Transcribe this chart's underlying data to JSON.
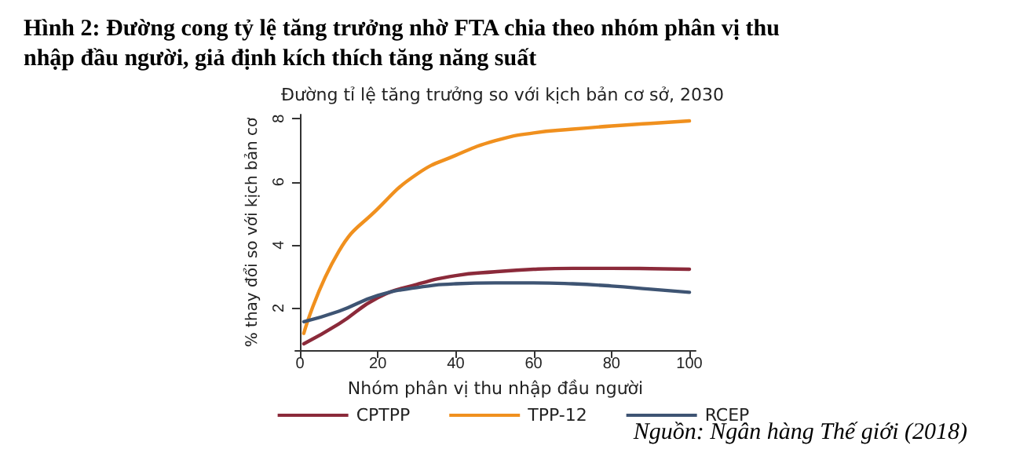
{
  "chart_data": {
    "type": "line",
    "title": "Hình 2: Đường cong tỷ lệ tăng trưởng nhờ FTA chia theo nhóm phân vị thu nhập đầu người, giả định kích thích tăng năng suất",
    "subtitle": "Đường tỉ lệ tăng trưởng so với kịch bản cơ sở, 2030",
    "xlabel": "Nhóm phân vị thu nhập đầu người",
    "ylabel": "% thay đổi so với kịch bản cơ",
    "annotations": [
      "Nguồn: Ngân hàng Thế giới (2018)"
    ],
    "x": [
      1,
      10,
      20,
      30,
      40,
      50,
      60,
      70,
      80,
      90,
      100
    ],
    "series": [
      {
        "name": "CPTPP",
        "color": "#8b2a3a",
        "values": [
          0.87,
          1.5,
          2.33,
          2.75,
          3.03,
          3.15,
          3.23,
          3.26,
          3.26,
          3.25,
          3.23
        ]
      },
      {
        "name": "TPP-12",
        "color": "#f0901e",
        "values": [
          1.2,
          3.8,
          5.15,
          6.24,
          6.84,
          7.3,
          7.55,
          7.67,
          7.77,
          7.85,
          7.93
        ]
      },
      {
        "name": "RCEP",
        "color": "#3e5473",
        "values": [
          1.57,
          1.9,
          2.4,
          2.65,
          2.77,
          2.8,
          2.8,
          2.77,
          2.7,
          2.6,
          2.5
        ]
      }
    ],
    "xlim": [
      -1.2,
      101.6
    ],
    "xticks": [
      0,
      20,
      40,
      60,
      80,
      100
    ],
    "ylim": [
      0.67,
      8.13
    ],
    "yticks": [
      2,
      4,
      6,
      8
    ],
    "grid": false,
    "legend": "bottom",
    "marker": "none",
    "line_style": "solid"
  }
}
